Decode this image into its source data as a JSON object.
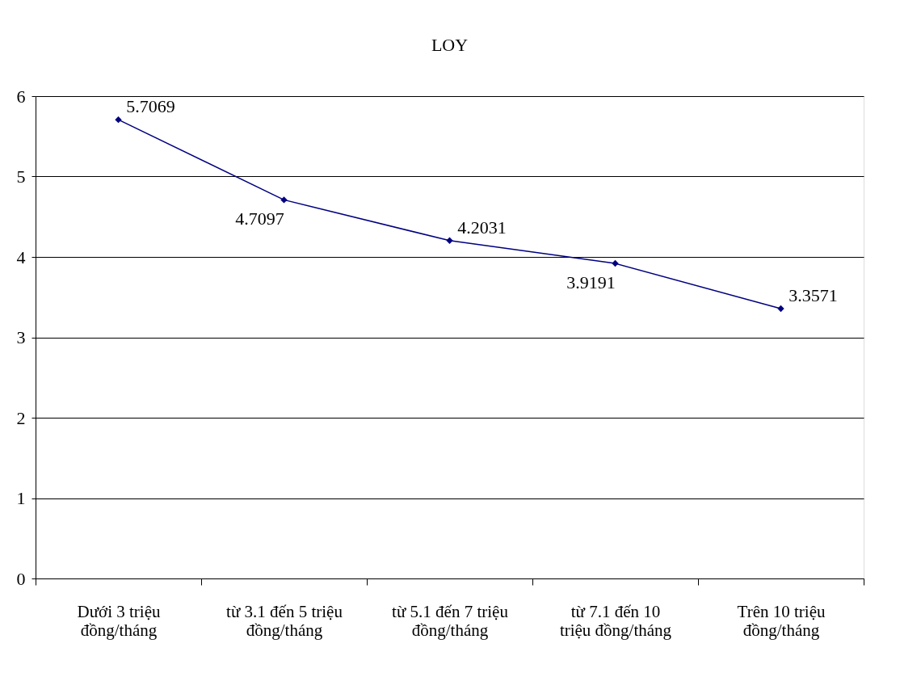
{
  "chart_data": {
    "type": "line",
    "title": "LOY",
    "categories": [
      "Dưới 3 triệu\nđồng/tháng",
      "từ 3.1 đến 5 triệu\nđồng/tháng",
      "từ 5.1 đến 7 triệu\nđồng/tháng",
      "từ 7.1 đến 10\ntriệu đồng/tháng",
      "Trên 10 triệu\nđồng/tháng"
    ],
    "series": [
      {
        "color": "#000080",
        "values": [
          5.7069,
          4.7097,
          4.2031,
          3.9191,
          3.3571
        ]
      }
    ],
    "ylim": [
      0,
      6
    ],
    "yticks": [
      0,
      1,
      2,
      3,
      4,
      5,
      6
    ],
    "grid": "y",
    "marker": "diamond",
    "line_style": "solid",
    "data_labels": true
  }
}
